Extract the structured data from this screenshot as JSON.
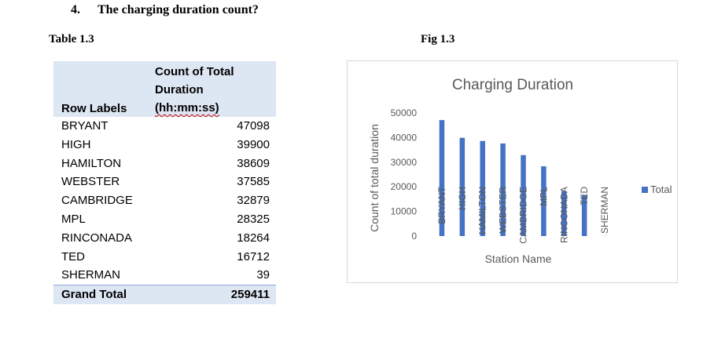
{
  "question": {
    "number": "4.",
    "text": "The charging duration count?"
  },
  "table_caption": "Table 1.3",
  "fig_caption": "Fig 1.3",
  "pivot": {
    "row_labels_header": "Row Labels",
    "value_header_lines": [
      "Count of Total",
      "Duration",
      "(hh:mm:ss)"
    ],
    "rows": [
      {
        "label": "BRYANT",
        "value": "47098"
      },
      {
        "label": "HIGH",
        "value": "39900"
      },
      {
        "label": "HAMILTON",
        "value": "38609"
      },
      {
        "label": "WEBSTER",
        "value": "37585"
      },
      {
        "label": "CAMBRIDGE",
        "value": "32879"
      },
      {
        "label": "MPL",
        "value": "28325"
      },
      {
        "label": "RINCONADA",
        "value": "18264"
      },
      {
        "label": "TED",
        "value": "16712"
      },
      {
        "label": "SHERMAN",
        "value": "39"
      }
    ],
    "grand_total_label": "Grand Total",
    "grand_total_value": "259411"
  },
  "chart_data": {
    "type": "bar",
    "title": "Charging Duration",
    "xlabel": "Station Name",
    "ylabel": "Count of total duration",
    "categories": [
      "BRYANT",
      "HIGH",
      "HAMILTON",
      "WEBSTER",
      "CAMBRIDGE",
      "MPL",
      "RINCONADA",
      "TED",
      "SHERMAN"
    ],
    "series": [
      {
        "name": "Total",
        "values": [
          47098,
          39900,
          38609,
          37585,
          32879,
          28325,
          18264,
          16712,
          39
        ]
      }
    ],
    "yticks": [
      "0",
      "10000",
      "20000",
      "30000",
      "40000",
      "50000"
    ],
    "ylim": [
      0,
      50000
    ],
    "grid": false,
    "legend_position": "right",
    "bar_color": "#4472c4"
  }
}
